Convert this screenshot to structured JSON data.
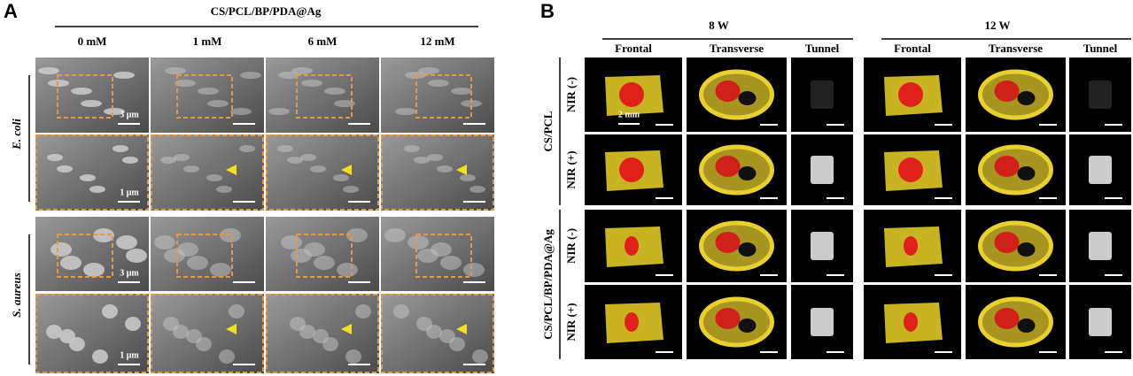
{
  "panel_a": {
    "label": "A",
    "title": "CS/PCL/BP/PDA@Ag",
    "columns": [
      "0 mM",
      "1 mM",
      "6 mM",
      "12 mM"
    ],
    "rows": [
      "E. coli",
      "S. aureus"
    ],
    "scale_labels": [
      "3 μm",
      "1 μm",
      "3 μm",
      "1 μm"
    ]
  },
  "panel_b": {
    "label": "B",
    "groups": [
      "8 W",
      "12 W"
    ],
    "columns": [
      "Frontal",
      "Transverse",
      "Tunnel"
    ],
    "row_groups": [
      {
        "name": "CS/PCL",
        "rows": [
          "NIR (-)",
          "NIR (+)"
        ]
      },
      {
        "name": "CS/PCL/BP/PDA@Ag",
        "rows": [
          "NIR (-)",
          "NIR (+)"
        ]
      }
    ],
    "scale_label": "2 mm"
  }
}
